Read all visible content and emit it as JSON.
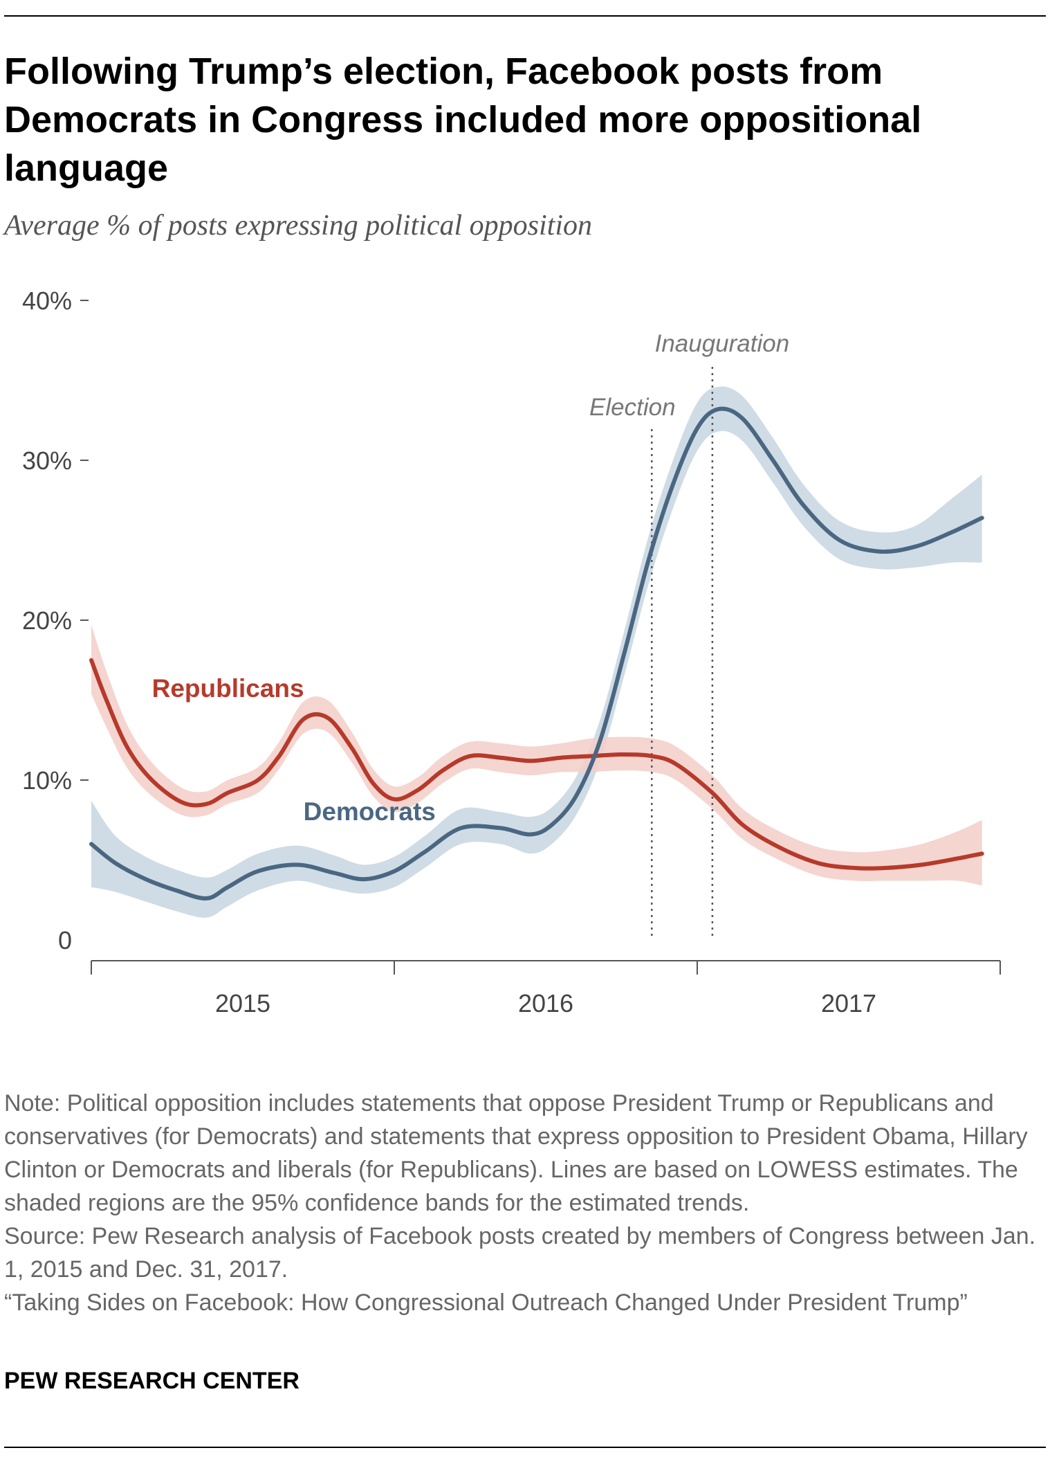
{
  "title": "Following Trump’s election, Facebook posts from Democrats in Congress included more oppositional language",
  "subtitle": "Average % of posts expressing political opposition",
  "colors": {
    "republicans": "#b63a2b",
    "republicans_band": "#f3cec8",
    "democrats": "#4a6782",
    "democrats_band": "#c7d6e1",
    "axis": "#555555",
    "event_line": "#555555"
  },
  "chart_data": {
    "type": "line",
    "title": "Following Trump’s election, Facebook posts from Democrats in Congress included more oppositional language",
    "ylabel": "Average % of posts expressing political opposition",
    "xlim": [
      2015.0,
      2018.0
    ],
    "ylim": [
      0,
      40
    ],
    "y_ticks": [
      {
        "value": 40,
        "label": "40%"
      },
      {
        "value": 30,
        "label": "30%"
      },
      {
        "value": 20,
        "label": "20%"
      },
      {
        "value": 10,
        "label": "10%"
      },
      {
        "value": 0,
        "label": "0"
      }
    ],
    "x_tick_positions": [
      2015.0,
      2016.0,
      2017.0,
      2018.0
    ],
    "x_labels": [
      {
        "value": 2015.5,
        "label": "2015"
      },
      {
        "value": 2016.5,
        "label": "2016"
      },
      {
        "value": 2017.5,
        "label": "2017"
      }
    ],
    "events": [
      {
        "name": "Election",
        "x": 2016.85
      },
      {
        "name": "Inauguration",
        "x": 2017.05
      }
    ],
    "series": [
      {
        "name": "Republicans",
        "label": "Republicans",
        "points": [
          {
            "x": 2015.0,
            "y": 17.5,
            "lo": 15.4,
            "hi": 19.7
          },
          {
            "x": 2015.05,
            "y": 15.0,
            "lo": 13.3,
            "hi": 16.8
          },
          {
            "x": 2015.12,
            "y": 12.0,
            "lo": 10.7,
            "hi": 13.4
          },
          {
            "x": 2015.2,
            "y": 10.0,
            "lo": 9.0,
            "hi": 11.1
          },
          {
            "x": 2015.3,
            "y": 8.6,
            "lo": 7.8,
            "hi": 9.5
          },
          {
            "x": 2015.38,
            "y": 8.5,
            "lo": 7.8,
            "hi": 9.3
          },
          {
            "x": 2015.45,
            "y": 9.2,
            "lo": 8.5,
            "hi": 10.0
          },
          {
            "x": 2015.55,
            "y": 10.0,
            "lo": 9.2,
            "hi": 10.8
          },
          {
            "x": 2015.62,
            "y": 11.5,
            "lo": 10.7,
            "hi": 12.4
          },
          {
            "x": 2015.7,
            "y": 13.8,
            "lo": 12.9,
            "hi": 14.9
          },
          {
            "x": 2015.78,
            "y": 13.9,
            "lo": 13.0,
            "hi": 15.0
          },
          {
            "x": 2015.86,
            "y": 12.0,
            "lo": 11.1,
            "hi": 13.0
          },
          {
            "x": 2015.93,
            "y": 9.8,
            "lo": 9.0,
            "hi": 10.7
          },
          {
            "x": 2016.0,
            "y": 8.8,
            "lo": 8.0,
            "hi": 9.6
          },
          {
            "x": 2016.08,
            "y": 9.4,
            "lo": 8.6,
            "hi": 10.2
          },
          {
            "x": 2016.16,
            "y": 10.6,
            "lo": 9.8,
            "hi": 11.5
          },
          {
            "x": 2016.25,
            "y": 11.5,
            "lo": 10.7,
            "hi": 12.4
          },
          {
            "x": 2016.35,
            "y": 11.4,
            "lo": 10.5,
            "hi": 12.3
          },
          {
            "x": 2016.45,
            "y": 11.2,
            "lo": 10.3,
            "hi": 12.1
          },
          {
            "x": 2016.55,
            "y": 11.4,
            "lo": 10.5,
            "hi": 12.3
          },
          {
            "x": 2016.65,
            "y": 11.5,
            "lo": 10.5,
            "hi": 12.6
          },
          {
            "x": 2016.75,
            "y": 11.6,
            "lo": 10.6,
            "hi": 12.7
          },
          {
            "x": 2016.85,
            "y": 11.5,
            "lo": 10.5,
            "hi": 12.6
          },
          {
            "x": 2016.93,
            "y": 11.0,
            "lo": 10.0,
            "hi": 12.1
          },
          {
            "x": 2017.05,
            "y": 9.2,
            "lo": 8.2,
            "hi": 10.3
          },
          {
            "x": 2017.15,
            "y": 7.2,
            "lo": 6.3,
            "hi": 8.2
          },
          {
            "x": 2017.27,
            "y": 5.8,
            "lo": 5.0,
            "hi": 6.8
          },
          {
            "x": 2017.4,
            "y": 4.8,
            "lo": 4.0,
            "hi": 5.8
          },
          {
            "x": 2017.52,
            "y": 4.5,
            "lo": 3.7,
            "hi": 5.5
          },
          {
            "x": 2017.62,
            "y": 4.5,
            "lo": 3.7,
            "hi": 5.6
          },
          {
            "x": 2017.74,
            "y": 4.7,
            "lo": 3.7,
            "hi": 6.0
          },
          {
            "x": 2017.86,
            "y": 5.1,
            "lo": 3.7,
            "hi": 6.8
          },
          {
            "x": 2017.94,
            "y": 5.4,
            "lo": 3.4,
            "hi": 7.5
          }
        ]
      },
      {
        "name": "Democrats",
        "label": "Democrats",
        "points": [
          {
            "x": 2015.0,
            "y": 6.0,
            "lo": 3.3,
            "hi": 8.7
          },
          {
            "x": 2015.08,
            "y": 4.8,
            "lo": 3.0,
            "hi": 6.5
          },
          {
            "x": 2015.18,
            "y": 3.8,
            "lo": 2.4,
            "hi": 5.2
          },
          {
            "x": 2015.28,
            "y": 3.1,
            "lo": 1.8,
            "hi": 4.4
          },
          {
            "x": 2015.38,
            "y": 2.6,
            "lo": 1.4,
            "hi": 3.9
          },
          {
            "x": 2015.45,
            "y": 3.3,
            "lo": 2.1,
            "hi": 4.4
          },
          {
            "x": 2015.55,
            "y": 4.3,
            "lo": 3.1,
            "hi": 5.4
          },
          {
            "x": 2015.68,
            "y": 4.7,
            "lo": 3.7,
            "hi": 5.9
          },
          {
            "x": 2015.8,
            "y": 4.2,
            "lo": 3.2,
            "hi": 5.3
          },
          {
            "x": 2015.9,
            "y": 3.8,
            "lo": 2.9,
            "hi": 4.7
          },
          {
            "x": 2016.0,
            "y": 4.3,
            "lo": 3.3,
            "hi": 5.2
          },
          {
            "x": 2016.1,
            "y": 5.5,
            "lo": 4.5,
            "hi": 6.5
          },
          {
            "x": 2016.22,
            "y": 7.0,
            "lo": 6.0,
            "hi": 8.2
          },
          {
            "x": 2016.35,
            "y": 7.0,
            "lo": 6.0,
            "hi": 8.0
          },
          {
            "x": 2016.45,
            "y": 6.6,
            "lo": 5.4,
            "hi": 7.7
          },
          {
            "x": 2016.52,
            "y": 7.2,
            "lo": 6.0,
            "hi": 8.3
          },
          {
            "x": 2016.6,
            "y": 9.0,
            "lo": 7.8,
            "hi": 10.2
          },
          {
            "x": 2016.68,
            "y": 12.5,
            "lo": 11.2,
            "hi": 13.8
          },
          {
            "x": 2016.76,
            "y": 18.0,
            "lo": 16.6,
            "hi": 19.4
          },
          {
            "x": 2016.84,
            "y": 23.8,
            "lo": 22.3,
            "hi": 25.3
          },
          {
            "x": 2016.92,
            "y": 28.5,
            "lo": 27.0,
            "hi": 30.0
          },
          {
            "x": 2017.0,
            "y": 32.0,
            "lo": 30.6,
            "hi": 33.6
          },
          {
            "x": 2017.07,
            "y": 33.2,
            "lo": 31.8,
            "hi": 34.6
          },
          {
            "x": 2017.15,
            "y": 32.6,
            "lo": 31.2,
            "hi": 34.0
          },
          {
            "x": 2017.25,
            "y": 30.0,
            "lo": 28.6,
            "hi": 31.4
          },
          {
            "x": 2017.35,
            "y": 27.2,
            "lo": 25.9,
            "hi": 28.5
          },
          {
            "x": 2017.47,
            "y": 25.0,
            "lo": 23.8,
            "hi": 26.2
          },
          {
            "x": 2017.6,
            "y": 24.3,
            "lo": 23.2,
            "hi": 25.5
          },
          {
            "x": 2017.72,
            "y": 24.6,
            "lo": 23.3,
            "hi": 25.9
          },
          {
            "x": 2017.84,
            "y": 25.5,
            "lo": 23.6,
            "hi": 27.6
          },
          {
            "x": 2017.94,
            "y": 26.4,
            "lo": 23.6,
            "hi": 29.1
          }
        ]
      }
    ],
    "annotations": [
      {
        "text": "Republicans",
        "series": "Republicans",
        "x": 2015.2,
        "y": 15.2
      },
      {
        "text": "Democrats",
        "series": "Democrats",
        "x": 2015.7,
        "y": 7.5
      }
    ]
  },
  "notes": {
    "note": "Note: Political opposition includes statements that oppose President Trump or Republicans and conservatives (for Democrats) and statements that express opposition to President Obama, Hillary Clinton or Democrats and liberals (for Republicans). Lines are based on LOWESS estimates. The shaded regions are the 95% confidence bands for the estimated trends.",
    "source": "Source: Pew Research analysis of Facebook posts created by members of Congress between Jan. 1, 2015 and Dec. 31, 2017.",
    "report": "“Taking Sides on Facebook: How Congressional Outreach Changed Under President Trump”"
  },
  "brand": "PEW RESEARCH CENTER"
}
